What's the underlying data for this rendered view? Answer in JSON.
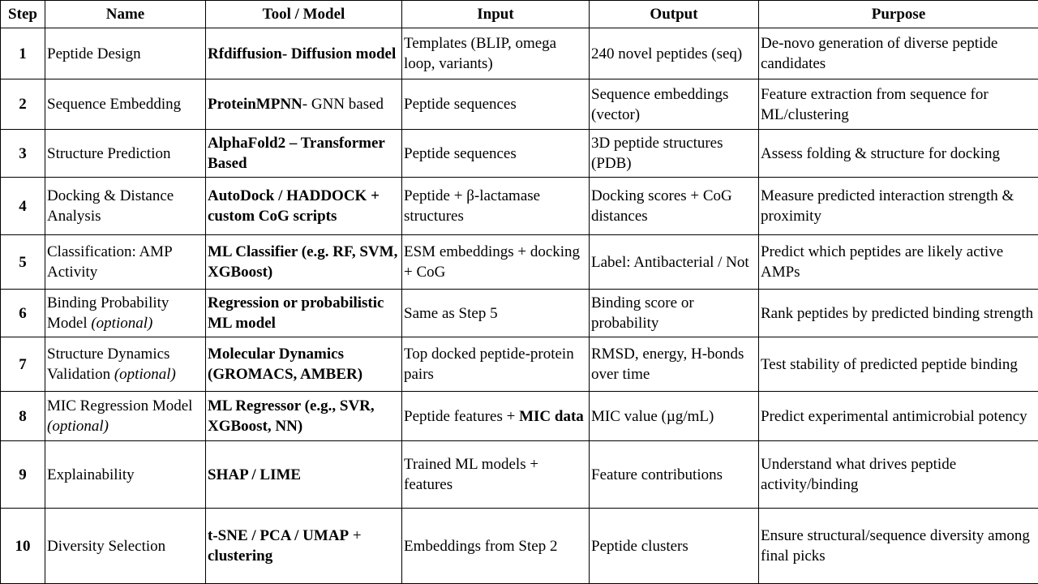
{
  "headers": [
    "Step",
    "Name",
    "Tool / Model",
    "Input",
    "Output",
    "Purpose"
  ],
  "rows": [
    {
      "step": "1",
      "name": "Peptide Design",
      "name_note": "",
      "tool": [
        {
          "text": "Rfdiffusion- Diffusion model",
          "bold": true
        }
      ],
      "input": [
        {
          "text": "Templates (BLIP, omega loop, variants)",
          "bold": false
        }
      ],
      "output": "240 novel peptides (seq)",
      "purpose": "De-novo generation of diverse peptide candidates"
    },
    {
      "step": "2",
      "name": "Sequence Embedding",
      "name_note": "",
      "tool": [
        {
          "text": "ProteinMPNN",
          "bold": true
        },
        {
          "text": "- GNN based",
          "bold": false
        }
      ],
      "input": [
        {
          "text": "Peptide sequences",
          "bold": false
        }
      ],
      "output": "Sequence embeddings (vector)",
      "purpose": "Feature extraction from sequence for ML/clustering"
    },
    {
      "step": "3",
      "name": "Structure Prediction",
      "name_note": "",
      "tool": [
        {
          "text": "AlphaFold2 – Transformer Based",
          "bold": true
        }
      ],
      "input": [
        {
          "text": "Peptide sequences",
          "bold": false
        }
      ],
      "output": "3D peptide structures (PDB)",
      "purpose": "Assess folding & structure for docking"
    },
    {
      "step": "4",
      "name": "Docking & Distance Analysis",
      "name_note": "",
      "tool": [
        {
          "text": "AutoDock / HADDOCK + custom CoG scripts",
          "bold": true
        }
      ],
      "input": [
        {
          "text": "Peptide + β-lactamase structures",
          "bold": false
        }
      ],
      "output": "Docking scores + CoG distances",
      "purpose": "Measure predicted interaction strength & proximity"
    },
    {
      "step": "5",
      "name": "Classification: AMP Activity",
      "name_note": "",
      "tool": [
        {
          "text": "ML Classifier (e.g. RF, SVM, XGBoost)",
          "bold": true
        }
      ],
      "input": [
        {
          "text": "ESM embeddings + docking + CoG",
          "bold": false
        }
      ],
      "output": "Label: Antibacterial / Not",
      "purpose": "Predict which peptides are likely active AMPs"
    },
    {
      "step": "6",
      "name": "Binding Probability Model",
      "name_note": "(optional)",
      "tool": [
        {
          "text": "Regression or probabilistic ML model",
          "bold": true
        }
      ],
      "input": [
        {
          "text": "Same as Step 5",
          "bold": false
        }
      ],
      "output": "Binding score or probability",
      "purpose": "Rank peptides by predicted binding strength"
    },
    {
      "step": "7",
      "name": "Structure Dynamics Validation",
      "name_note": "(optional)",
      "tool": [
        {
          "text": "Molecular Dynamics (GROMACS, AMBER)",
          "bold": true
        }
      ],
      "input": [
        {
          "text": "Top docked peptide-protein pairs",
          "bold": false
        }
      ],
      "output": "RMSD, energy, H-bonds over time",
      "purpose": "Test stability of predicted peptide binding"
    },
    {
      "step": "8",
      "name": "MIC Regression Model",
      "name_note": "(optional)",
      "tool": [
        {
          "text": "ML Regressor (e.g., SVR, XGBoost, NN)",
          "bold": true
        }
      ],
      "input": [
        {
          "text": "Peptide features + ",
          "bold": false
        },
        {
          "text": "MIC data",
          "bold": true
        }
      ],
      "output": "MIC value (µg/mL)",
      "purpose": "Predict experimental antimicrobial potency"
    },
    {
      "step": "9",
      "name": "Explainability",
      "name_note": "",
      "tool": [
        {
          "text": "SHAP / LIME",
          "bold": true
        }
      ],
      "input": [
        {
          "text": "Trained ML models + features",
          "bold": false
        }
      ],
      "output": "Feature contributions",
      "purpose": "Understand what drives peptide activity/binding"
    },
    {
      "step": "10",
      "name": "Diversity Selection",
      "name_note": "",
      "tool": [
        {
          "text": "t-SNE / PCA / UMAP",
          "bold": true
        },
        {
          "text": " + ",
          "bold": false
        },
        {
          "text": "clustering",
          "bold": true
        }
      ],
      "input": [
        {
          "text": "Embeddings from Step 2",
          "bold": false
        }
      ],
      "output": "Peptide clusters",
      "purpose": "Ensure structural/sequence diversity among final picks"
    }
  ]
}
